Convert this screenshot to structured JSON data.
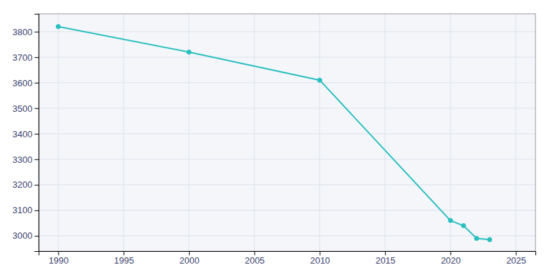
{
  "chart_data": {
    "type": "line",
    "x": [
      1990,
      2000,
      2010,
      2020,
      2021,
      2022,
      2023
    ],
    "values": [
      3820,
      3720,
      3610,
      3060,
      3040,
      2990,
      2985
    ],
    "color": "#2abfbf",
    "marker": "circle",
    "line_style": "solid",
    "xlim": [
      1988.5,
      2026.5
    ],
    "ylim": [
      2940,
      3870
    ],
    "xticks": [
      1990,
      1995,
      2000,
      2005,
      2010,
      2015,
      2020,
      2025
    ],
    "yticks": [
      3000,
      3100,
      3200,
      3300,
      3400,
      3500,
      3600,
      3700,
      3800
    ],
    "grid": true
  }
}
